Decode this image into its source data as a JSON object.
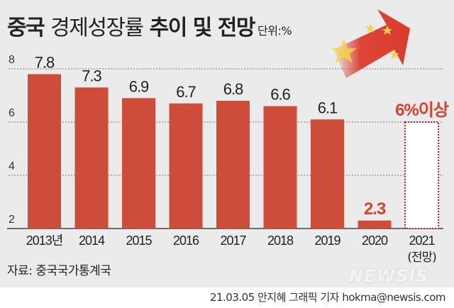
{
  "title": {
    "bold1": "중국",
    "light": "경제성장률",
    "bold2": "추이 및 전망",
    "unit": "단위:%"
  },
  "source": "자료: 중국국가통계국",
  "credit": "21.03.05 안지혜 그래픽 기자 hokma@newsis.com",
  "logo": "NEWSIS",
  "colors": {
    "bar": "#cd4d3a",
    "forecast_label": "#d9412c",
    "dotted": "#c8202a"
  },
  "chart_data": {
    "type": "bar",
    "title": "중국 경제성장률 추이 및 전망",
    "unit": "%",
    "categories": [
      "2013년",
      "2014",
      "2015",
      "2016",
      "2017",
      "2018",
      "2019",
      "2020",
      "2021"
    ],
    "category_sublabels": [
      "",
      "",
      "",
      "",
      "",
      "",
      "",
      "",
      "(전망)"
    ],
    "values": [
      7.8,
      7.3,
      6.9,
      6.7,
      6.8,
      6.6,
      6.1,
      2.3,
      6
    ],
    "data_labels": [
      "7.8",
      "7.3",
      "6.9",
      "6.7",
      "6.8",
      "6.6",
      "6.1",
      "2.3",
      "6%이상"
    ],
    "forecast_index": 8,
    "yticks": [
      "2",
      "4",
      "6",
      "8"
    ],
    "ylim": [
      2,
      8
    ],
    "grid": true
  }
}
